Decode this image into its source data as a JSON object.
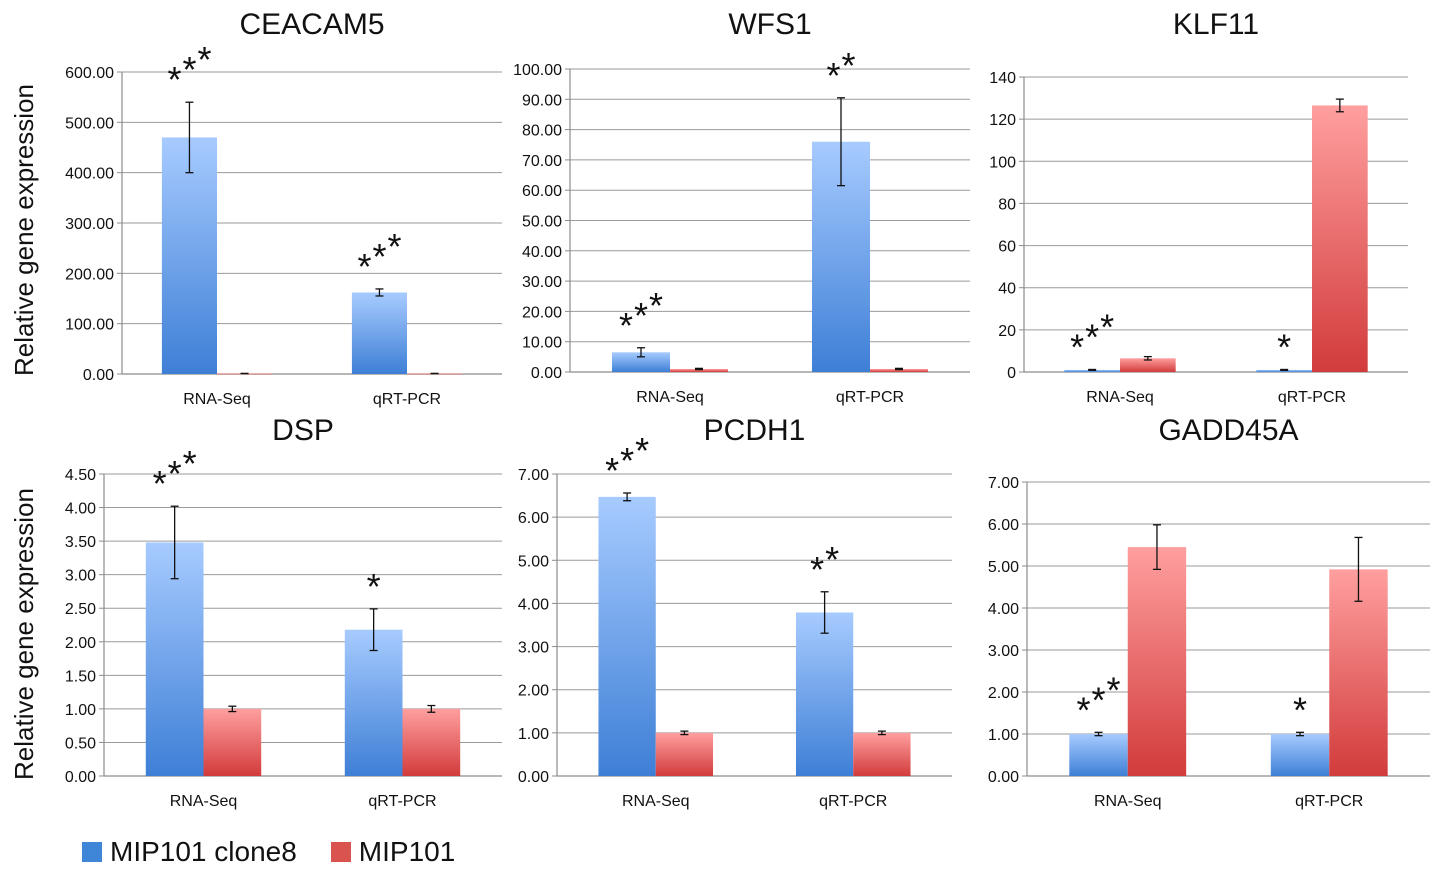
{
  "colors": {
    "series_blue_light": "#a7cbff",
    "series_blue_dark": "#3e7fd6",
    "series_red_light": "#ff9f9f",
    "series_red_dark": "#d23b3b",
    "axis": "#8c8c8c",
    "grid": "#9a9a9a"
  },
  "y_axis_label": "Relative gene expression",
  "legend": [
    {
      "name": "MIP101 clone8",
      "color": "#3f86d8"
    },
    {
      "name": "MIP101",
      "color": "#d9534f"
    }
  ],
  "chart_data": [
    {
      "type": "bar",
      "title": "CEACAM5",
      "categories": [
        "RNA-Seq",
        "qRT-PCR"
      ],
      "ylim": [
        0,
        600
      ],
      "yticks": [
        "0.00",
        "100.00",
        "200.00",
        "300.00",
        "400.00",
        "500.00",
        "600.00"
      ],
      "series": [
        {
          "name": "MIP101 clone8",
          "values": [
            470,
            162
          ],
          "errors": [
            70,
            7
          ]
        },
        {
          "name": "MIP101",
          "values": [
            1,
            1
          ],
          "errors": [
            0.1,
            0.1
          ]
        }
      ],
      "annotations": [
        {
          "text": "***",
          "category": 0
        },
        {
          "text": "***",
          "category": 1
        }
      ]
    },
    {
      "type": "bar",
      "title": "WFS1",
      "categories": [
        "RNA-Seq",
        "qRT-PCR"
      ],
      "ylim": [
        0,
        100
      ],
      "yticks": [
        "0.00",
        "10.00",
        "20.00",
        "30.00",
        "40.00",
        "50.00",
        "60.00",
        "70.00",
        "80.00",
        "90.00",
        "100.00"
      ],
      "series": [
        {
          "name": "MIP101 clone8",
          "values": [
            6.5,
            76
          ],
          "errors": [
            1.5,
            14.5
          ]
        },
        {
          "name": "MIP101",
          "values": [
            1,
            1
          ],
          "errors": [
            0.2,
            0.2
          ]
        }
      ],
      "annotations": [
        {
          "text": "***",
          "category": 0
        },
        {
          "text": "**",
          "category": 1
        }
      ]
    },
    {
      "type": "bar",
      "title": "KLF11",
      "categories": [
        "RNA-Seq",
        "qRT-PCR"
      ],
      "ylim": [
        0,
        140
      ],
      "yticks": [
        "0",
        "20",
        "40",
        "60",
        "80",
        "100",
        "120",
        "140"
      ],
      "series": [
        {
          "name": "MIP101 clone8",
          "values": [
            1,
            1
          ],
          "errors": [
            0.2,
            0.2
          ]
        },
        {
          "name": "MIP101",
          "values": [
            6.5,
            126.5
          ],
          "errors": [
            0.8,
            3
          ]
        }
      ],
      "annotations": [
        {
          "text": "***",
          "category": 0
        },
        {
          "text": "*",
          "category": 1
        }
      ]
    },
    {
      "type": "bar",
      "title": "DSP",
      "categories": [
        "RNA-Seq",
        "qRT-PCR"
      ],
      "ylim": [
        0,
        4.5
      ],
      "yticks": [
        "0.00",
        "0.50",
        "1.00",
        "1.50",
        "2.00",
        "2.50",
        "3.00",
        "3.50",
        "4.00",
        "4.50"
      ],
      "series": [
        {
          "name": "MIP101 clone8",
          "values": [
            3.48,
            2.18
          ],
          "errors": [
            0.54,
            0.31
          ]
        },
        {
          "name": "MIP101",
          "values": [
            1.0,
            1.0
          ],
          "errors": [
            0.04,
            0.05
          ]
        }
      ],
      "annotations": [
        {
          "text": "***",
          "category": 0
        },
        {
          "text": "*",
          "category": 1
        }
      ]
    },
    {
      "type": "bar",
      "title": "PCDH1",
      "categories": [
        "RNA-Seq",
        "qRT-PCR"
      ],
      "ylim": [
        0,
        7
      ],
      "yticks": [
        "0.00",
        "1.00",
        "2.00",
        "3.00",
        "4.00",
        "5.00",
        "6.00",
        "7.00"
      ],
      "series": [
        {
          "name": "MIP101 clone8",
          "values": [
            6.47,
            3.79
          ],
          "errors": [
            0.09,
            0.48
          ]
        },
        {
          "name": "MIP101",
          "values": [
            1.0,
            1.0
          ],
          "errors": [
            0.04,
            0.04
          ]
        }
      ],
      "annotations": [
        {
          "text": "***",
          "category": 0
        },
        {
          "text": "**",
          "category": 1
        }
      ]
    },
    {
      "type": "bar",
      "title": "GADD45A",
      "categories": [
        "RNA-Seq",
        "qRT-PCR"
      ],
      "ylim": [
        0,
        7
      ],
      "yticks": [
        "0.00",
        "1.00",
        "2.00",
        "3.00",
        "4.00",
        "5.00",
        "6.00",
        "7.00"
      ],
      "series": [
        {
          "name": "MIP101 clone8",
          "values": [
            1.0,
            1.0
          ],
          "errors": [
            0.04,
            0.04
          ]
        },
        {
          "name": "MIP101",
          "values": [
            5.45,
            4.92
          ],
          "errors": [
            0.53,
            0.76
          ]
        }
      ],
      "annotations": [
        {
          "text": "***",
          "category": 0
        },
        {
          "text": "*",
          "category": 1
        }
      ]
    }
  ]
}
